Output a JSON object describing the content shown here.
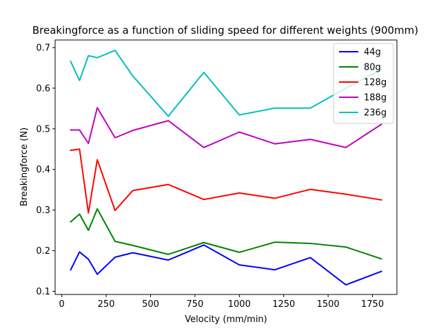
{
  "chart_data": {
    "type": "line",
    "title": "Breakingforce as a function of sliding speed for different weights (900mm)",
    "xlabel": "Velocity (mm/min)",
    "ylabel": "Breakingforce (N)",
    "xlim": [
      -37.5,
      1887.5
    ],
    "ylim": [
      0.0923,
      0.7186
    ],
    "xticks": [
      0,
      250,
      500,
      750,
      1000,
      1250,
      1500,
      1750
    ],
    "yticks": [
      0.1,
      0.2,
      0.3,
      0.4,
      0.5,
      0.6,
      0.7
    ],
    "xtick_labels": [
      "0",
      "250",
      "500",
      "750",
      "1000",
      "1250",
      "1500",
      "1750"
    ],
    "ytick_labels": [
      "0.1",
      "0.2",
      "0.3",
      "0.4",
      "0.5",
      "0.6",
      "0.7"
    ],
    "grid": false,
    "legend_position": "top-right",
    "x": [
      50,
      100,
      150,
      200,
      300,
      400,
      600,
      800,
      1000,
      1200,
      1400,
      1600,
      1800
    ],
    "series": [
      {
        "name": "44g",
        "color": "#0000ff",
        "values": [
          0.153,
          0.197,
          0.179,
          0.142,
          0.184,
          0.195,
          0.177,
          0.214,
          0.165,
          0.153,
          0.183,
          0.116,
          0.149
        ]
      },
      {
        "name": "80g",
        "color": "#008000",
        "values": [
          0.271,
          0.29,
          0.25,
          0.303,
          0.223,
          0.213,
          0.191,
          0.22,
          0.196,
          0.221,
          0.218,
          0.209,
          0.18
        ]
      },
      {
        "name": "128g",
        "color": "#ff0000",
        "values": [
          0.447,
          0.45,
          0.293,
          0.424,
          0.299,
          0.348,
          0.363,
          0.326,
          0.342,
          0.329,
          0.351,
          0.339,
          0.325
        ]
      },
      {
        "name": "188g",
        "color": "#bf00bf",
        "values": [
          0.497,
          0.497,
          0.464,
          0.552,
          0.478,
          0.496,
          0.52,
          0.454,
          0.492,
          0.463,
          0.474,
          0.454,
          0.511
        ]
      },
      {
        "name": "236g",
        "color": "#00bfbf",
        "values": [
          0.666,
          0.619,
          0.68,
          0.675,
          0.693,
          0.63,
          0.531,
          0.639,
          0.534,
          0.551,
          0.551,
          0.6,
          0.646
        ]
      }
    ]
  }
}
